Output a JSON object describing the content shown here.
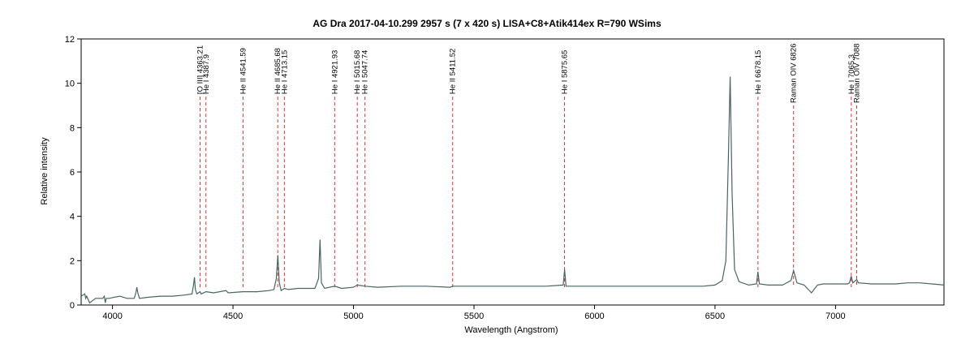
{
  "chart_data": {
    "type": "line",
    "title": "AG Dra   2017-04-10.299  2957 s (7 x 420 s)  LISA+C8+Atik414ex R=790 WSims",
    "xlabel": "Wavelength (Angstrom)",
    "ylabel": "Relative intensity",
    "xlim": [
      3870,
      7450
    ],
    "ylim": [
      0,
      12
    ],
    "x_ticks": [
      4000,
      4500,
      5000,
      5500,
      6000,
      6500,
      7000
    ],
    "y_ticks": [
      0,
      2,
      4,
      6,
      8,
      10,
      12
    ],
    "grid": false,
    "line_color": "#4a6464",
    "marker_color": "#e03030",
    "series": [
      {
        "x": [
          3870,
          3885,
          3889,
          3893,
          3905,
          3930,
          3960,
          3966,
          3970,
          3974,
          3985,
          4030,
          4060,
          4090,
          4097,
          4101,
          4105,
          4112,
          4150,
          4200,
          4250,
          4300,
          4330,
          4336,
          4340,
          4344,
          4350,
          4363,
          4368,
          4388,
          4420,
          4471,
          4480,
          4541,
          4600,
          4650,
          4670,
          4680,
          4686,
          4692,
          4700,
          4713,
          4730,
          4770,
          4800,
          4840,
          4855,
          4861,
          4867,
          4880,
          4922,
          4950,
          5000,
          5016,
          5048,
          5100,
          5200,
          5300,
          5400,
          5412,
          5500,
          5600,
          5700,
          5800,
          5870,
          5876,
          5882,
          5950,
          6050,
          6150,
          6250,
          6350,
          6450,
          6500,
          6530,
          6545,
          6555,
          6563,
          6571,
          6581,
          6600,
          6640,
          6672,
          6678,
          6684,
          6720,
          6780,
          6815,
          6826,
          6840,
          6870,
          6900,
          6925,
          6950,
          7000,
          7050,
          7058,
          7065,
          7072,
          7083,
          7088,
          7095,
          7150,
          7200,
          7250,
          7300,
          7350,
          7400,
          7450
        ],
        "y": [
          0.4,
          0.5,
          0.3,
          0.4,
          0.1,
          0.3,
          0.3,
          0.4,
          0.1,
          0.3,
          0.3,
          0.4,
          0.3,
          0.3,
          0.55,
          0.8,
          0.55,
          0.3,
          0.35,
          0.4,
          0.4,
          0.45,
          0.5,
          0.9,
          1.25,
          0.7,
          0.5,
          0.6,
          0.5,
          0.6,
          0.55,
          0.65,
          0.55,
          0.6,
          0.6,
          0.65,
          0.7,
          1.2,
          2.25,
          1.0,
          0.65,
          0.75,
          0.7,
          0.75,
          0.75,
          0.75,
          1.2,
          2.95,
          1.0,
          0.75,
          0.85,
          0.75,
          0.8,
          0.9,
          0.85,
          0.8,
          0.85,
          0.85,
          0.8,
          0.85,
          0.85,
          0.85,
          0.85,
          0.85,
          0.9,
          1.6,
          0.85,
          0.85,
          0.85,
          0.85,
          0.85,
          0.85,
          0.85,
          0.9,
          1.1,
          2.0,
          6.5,
          10.3,
          5.0,
          1.6,
          1.05,
          0.9,
          0.95,
          1.5,
          0.95,
          0.9,
          0.9,
          1.1,
          1.55,
          1.0,
          0.9,
          0.55,
          0.9,
          0.95,
          0.95,
          0.95,
          1.0,
          1.3,
          1.0,
          1.1,
          1.15,
          1.0,
          0.95,
          0.95,
          0.95,
          1.0,
          1.0,
          0.95,
          0.9
        ]
      }
    ],
    "lines": [
      {
        "wavelength": 4363.21,
        "label": "[O III] 4363.21",
        "top": 9.4
      },
      {
        "wavelength": 4387.9,
        "label": "He I 4387.9",
        "top": 9.4
      },
      {
        "wavelength": 4541.59,
        "label": "He II 4541.59",
        "top": 9.4
      },
      {
        "wavelength": 4685.68,
        "label": "He II 4685.68",
        "top": 9.4
      },
      {
        "wavelength": 4713.15,
        "label": "He I 4713.15",
        "top": 9.4
      },
      {
        "wavelength": 4921.93,
        "label": "He I 4921.93",
        "top": 9.4
      },
      {
        "wavelength": 5015.68,
        "label": "He I 5015.68",
        "top": 9.4
      },
      {
        "wavelength": 5047.74,
        "label": "He I 5047.74",
        "top": 9.4
      },
      {
        "wavelength": 5411.52,
        "label": "He II 5411.52",
        "top": 9.4
      },
      {
        "wavelength": 5875.65,
        "label": "He I 5875.65",
        "top": 9.4
      },
      {
        "wavelength": 6678.15,
        "label": "He I 6678.15",
        "top": 9.4
      },
      {
        "wavelength": 6826,
        "label": "Raman OIV 6826",
        "top": 9.0
      },
      {
        "wavelength": 7065.3,
        "label": "He I 7065.3",
        "top": 9.4
      },
      {
        "wavelength": 7088,
        "label": "Raman OIV 7088",
        "top": 9.0
      }
    ]
  }
}
